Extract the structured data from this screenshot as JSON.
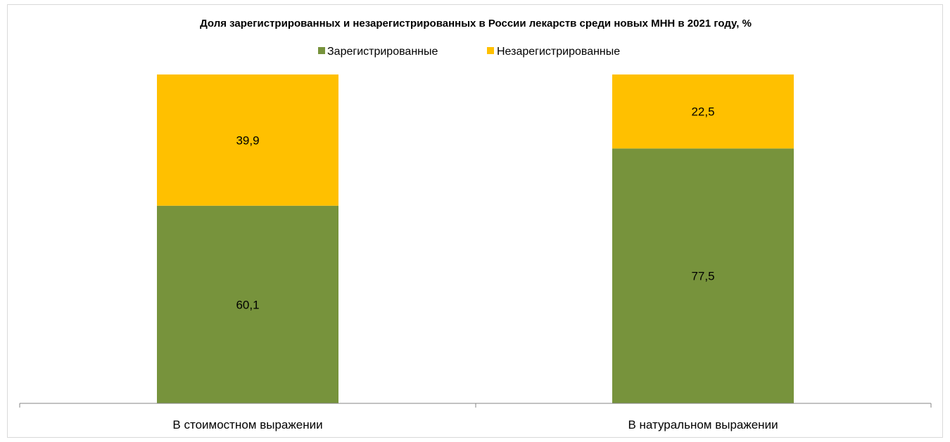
{
  "chart_data": {
    "type": "bar",
    "stacked": true,
    "title": "Доля зарегистрированных и незарегистрированных в России лекарств среди новых МНН в 2021 году, %",
    "xlabel": "",
    "ylabel": "",
    "ylim": [
      0,
      100
    ],
    "grid": false,
    "legend_position": "top",
    "categories": [
      "В стоимостном выражении",
      "В натуральном выражении"
    ],
    "series": [
      {
        "name": "Зарегистрированные",
        "values": [
          60.1,
          77.5
        ],
        "labels": [
          "60,1",
          "77,5"
        ],
        "color": "#77933c"
      },
      {
        "name": "Незарегистрированные",
        "values": [
          39.9,
          22.5
        ],
        "labels": [
          "39,9",
          "22,5"
        ],
        "color": "#ffc000"
      }
    ]
  }
}
